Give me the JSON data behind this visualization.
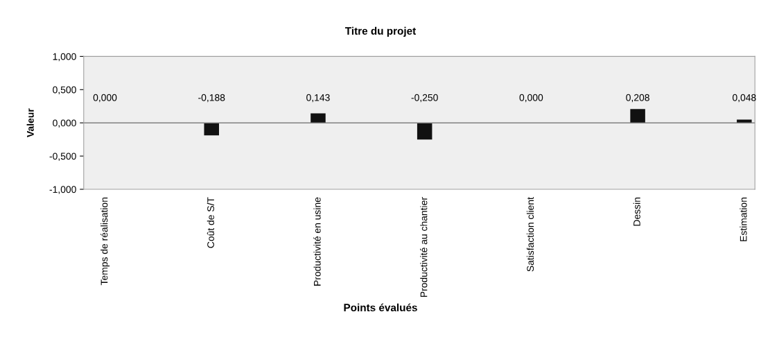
{
  "chart_data": {
    "type": "bar",
    "title": "Titre du projet",
    "xlabel": "Points évalués",
    "ylabel": "Valeur",
    "categories": [
      "Temps de réalisation",
      "Coût de S/T",
      "Productivité en usine",
      "Productivité au chantier",
      "Satisfaction client",
      "Dessin",
      "Estimation"
    ],
    "values": [
      0.0,
      -0.188,
      0.143,
      -0.25,
      0.0,
      0.208,
      0.048
    ],
    "value_labels": [
      "0,000",
      "-0,188",
      "0,143",
      "-0,250",
      "0,000",
      "0,208",
      "0,048"
    ],
    "color": "#111111",
    "ylim": [
      -1,
      1
    ],
    "yticks": [
      {
        "value": -1,
        "label": "-1,000"
      },
      {
        "value": -0.5,
        "label": "-0,500"
      },
      {
        "value": 0,
        "label": "0,000"
      },
      {
        "value": 0.5,
        "label": "0,500"
      },
      {
        "value": 1,
        "label": "1,000"
      }
    ],
    "ref_lines": [
      {
        "axis": "y",
        "value": 0,
        "label": null,
        "color": "#808080"
      }
    ],
    "grid": false,
    "legend": false
  }
}
